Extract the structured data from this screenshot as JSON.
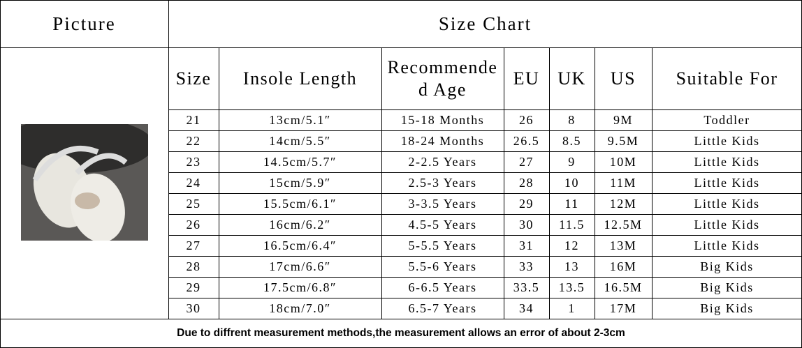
{
  "header": {
    "picture_label": "Picture",
    "title": "Size Chart"
  },
  "table": {
    "columns": [
      "Size",
      "Insole Length",
      "Recommended Age",
      "EU",
      "UK",
      "US",
      "Suitable For"
    ],
    "rows": [
      [
        "21",
        "13cm/5.1″",
        "15-18 Months",
        "26",
        "8",
        "9M",
        "Toddler"
      ],
      [
        "22",
        "14cm/5.5″",
        "18-24 Months",
        "26.5",
        "8.5",
        "9.5M",
        "Little Kids"
      ],
      [
        "23",
        "14.5cm/5.7″",
        "2-2.5 Years",
        "27",
        "9",
        "10M",
        "Little Kids"
      ],
      [
        "24",
        "15cm/5.9″",
        "2.5-3 Years",
        "28",
        "10",
        "11M",
        "Little Kids"
      ],
      [
        "25",
        "15.5cm/6.1″",
        "3-3.5 Years",
        "29",
        "11",
        "12M",
        "Little Kids"
      ],
      [
        "26",
        "16cm/6.2″",
        "4.5-5 Years",
        "30",
        "11.5",
        "12.5M",
        "Little Kids"
      ],
      [
        "27",
        "16.5cm/6.4″",
        "5-5.5 Years",
        "31",
        "12",
        "13M",
        "Little Kids"
      ],
      [
        "28",
        "17cm/6.6″",
        "5.5-6 Years",
        "33",
        "13",
        "16M",
        "Big Kids"
      ],
      [
        "29",
        "17.5cm/6.8″",
        "6-6.5 Years",
        "33.5",
        "13.5",
        "16.5M",
        "Big Kids"
      ],
      [
        "30",
        "18cm/7.0″",
        "6.5-7 Years",
        "34",
        "1",
        "17M",
        "Big Kids"
      ]
    ]
  },
  "footer": {
    "note": "Due to diffrent measurement methods,the measurement allows an error of about 2-3cm"
  }
}
